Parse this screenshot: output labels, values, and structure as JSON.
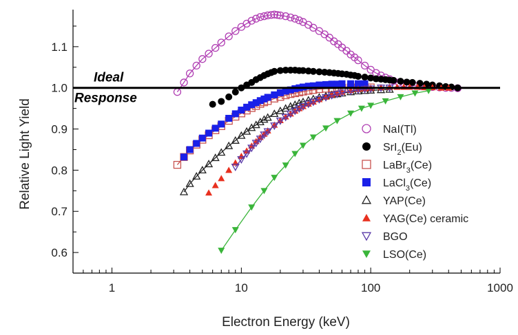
{
  "chart_data": {
    "type": "scatter",
    "xlabel": "Electron Energy (keV)",
    "ylabel": "Relative Light Yield",
    "xscale": "log",
    "xlim": [
      0.5,
      1000
    ],
    "ylim": [
      0.55,
      1.19
    ],
    "x_ticks": [
      1,
      10,
      100,
      1000
    ],
    "x_tick_labels": [
      "1",
      "10",
      "100",
      "1000"
    ],
    "y_ticks": [
      0.6,
      0.7,
      0.8,
      0.9,
      1.0,
      1.1
    ],
    "y_tick_labels": [
      "0.6",
      "0.7",
      "0.8",
      "0.9",
      "1.0",
      "1.1"
    ],
    "grid": false,
    "legend_position": "lower-right",
    "reference_line": {
      "y": 1.0,
      "label_line1": "Ideal",
      "label_line2": "Response"
    },
    "series": [
      {
        "name": "NaI(Tl)",
        "marker": "circle-open",
        "color": "#b03fb3",
        "fit": true,
        "x": [
          3.2,
          3.6,
          4.0,
          4.5,
          5.0,
          5.6,
          6.3,
          7.0,
          8.0,
          9.0,
          10,
          11,
          12,
          13,
          14,
          15,
          16,
          17,
          18,
          19,
          20,
          22,
          24,
          26,
          28,
          30,
          33,
          36,
          40,
          44,
          48,
          52,
          56,
          60,
          65,
          70,
          75,
          80,
          90,
          100,
          110,
          120,
          130,
          140,
          150,
          165,
          180,
          200,
          220,
          240,
          270,
          300,
          340,
          380,
          420,
          470
        ],
        "y": [
          0.99,
          1.013,
          1.035,
          1.054,
          1.07,
          1.083,
          1.097,
          1.11,
          1.125,
          1.138,
          1.148,
          1.156,
          1.163,
          1.168,
          1.172,
          1.174,
          1.176,
          1.177,
          1.178,
          1.177,
          1.176,
          1.174,
          1.171,
          1.168,
          1.164,
          1.16,
          1.153,
          1.146,
          1.138,
          1.13,
          1.122,
          1.113,
          1.106,
          1.098,
          1.09,
          1.081,
          1.074,
          1.067,
          1.054,
          1.044,
          1.036,
          1.03,
          1.025,
          1.021,
          1.017,
          1.013,
          1.01,
          1.007,
          1.005,
          1.004,
          1.003,
          1.002,
          1.001,
          1.0,
          1.0,
          0.999
        ]
      },
      {
        "name": "SrI2(Eu)",
        "marker": "circle-filled",
        "color": "#000000",
        "fit": false,
        "x": [
          6.0,
          7.0,
          8.0,
          9.0,
          10,
          11,
          12,
          13,
          14,
          15,
          16,
          17,
          18,
          20,
          22,
          24,
          26,
          28,
          30,
          33,
          36,
          40,
          44,
          48,
          52,
          56,
          60,
          65,
          70,
          75,
          80,
          90,
          100,
          110,
          120,
          130,
          140,
          150,
          170,
          190,
          210,
          240,
          270,
          300,
          340,
          380,
          420,
          470
        ],
        "y": [
          0.96,
          0.967,
          0.978,
          0.99,
          1.0,
          1.007,
          1.013,
          1.02,
          1.025,
          1.03,
          1.034,
          1.037,
          1.04,
          1.042,
          1.043,
          1.043,
          1.043,
          1.042,
          1.042,
          1.041,
          1.04,
          1.039,
          1.038,
          1.037,
          1.036,
          1.035,
          1.034,
          1.033,
          1.031,
          1.03,
          1.028,
          1.026,
          1.024,
          1.022,
          1.021,
          1.02,
          1.019,
          1.018,
          1.016,
          1.014,
          1.013,
          1.011,
          1.009,
          1.007,
          1.005,
          1.003,
          1.002,
          1.0
        ]
      },
      {
        "name": "LaBr3(Ce)",
        "marker": "square-open",
        "color": "#c8524e",
        "fit": true,
        "x": [
          3.2,
          3.6,
          4.0,
          4.5,
          5.0,
          5.6,
          6.3,
          7.0,
          8.0,
          9.0,
          10,
          11,
          12,
          13,
          14,
          15,
          16,
          18,
          20,
          22,
          24,
          26,
          28,
          30,
          33,
          36,
          40,
          45,
          50,
          55,
          60,
          70,
          80,
          90,
          100
        ],
        "y": [
          0.813,
          0.832,
          0.848,
          0.862,
          0.874,
          0.885,
          0.897,
          0.907,
          0.92,
          0.93,
          0.938,
          0.945,
          0.951,
          0.956,
          0.961,
          0.965,
          0.968,
          0.974,
          0.978,
          0.982,
          0.985,
          0.987,
          0.989,
          0.991,
          0.993,
          0.995,
          0.997,
          0.998,
          0.999,
          1.0,
          1.0,
          1.001,
          1.001,
          1.001,
          1.001
        ]
      },
      {
        "name": "LaCl3(Ce)",
        "marker": "square-filled",
        "color": "#1a20e8",
        "fit": false,
        "x": [
          3.6,
          4.0,
          4.5,
          5.0,
          5.6,
          6.3,
          7.0,
          8.0,
          9.0,
          10,
          11,
          12,
          13,
          14,
          15,
          16,
          18,
          20,
          22,
          24,
          26,
          28,
          30,
          33,
          36,
          40,
          45,
          50,
          55,
          60,
          70,
          80,
          90
        ],
        "y": [
          0.832,
          0.85,
          0.865,
          0.878,
          0.89,
          0.902,
          0.912,
          0.926,
          0.937,
          0.946,
          0.953,
          0.959,
          0.964,
          0.969,
          0.973,
          0.977,
          0.983,
          0.988,
          0.992,
          0.995,
          0.998,
          1.0,
          1.002,
          1.004,
          1.005,
          1.007,
          1.008,
          1.009,
          1.009,
          1.01,
          1.01,
          1.01,
          1.01
        ]
      },
      {
        "name": "YAP(Ce)",
        "marker": "triangle-open",
        "color": "#222222",
        "fit": true,
        "x": [
          3.6,
          4.0,
          4.5,
          5.0,
          5.6,
          6.3,
          7.0,
          8.0,
          9.0,
          10,
          11,
          12,
          13,
          14,
          15,
          16,
          18,
          20,
          22,
          24,
          26,
          28,
          30,
          33,
          36,
          40,
          45,
          50,
          55,
          60,
          70,
          80,
          90,
          100,
          120,
          140
        ],
        "y": [
          0.747,
          0.767,
          0.785,
          0.8,
          0.815,
          0.83,
          0.843,
          0.859,
          0.872,
          0.884,
          0.894,
          0.903,
          0.91,
          0.917,
          0.923,
          0.928,
          0.937,
          0.944,
          0.95,
          0.955,
          0.959,
          0.963,
          0.966,
          0.97,
          0.973,
          0.977,
          0.98,
          0.983,
          0.985,
          0.987,
          0.99,
          0.992,
          0.993,
          0.994,
          0.995,
          0.996
        ]
      },
      {
        "name": "YAG(Ce) ceramic",
        "marker": "triangle-filled",
        "color": "#e8301f",
        "fit": false,
        "x": [
          5.6,
          6.3,
          7.0,
          8.0,
          9.0,
          10,
          11,
          12,
          13,
          14,
          15,
          16,
          18,
          20,
          22,
          24,
          26,
          28,
          30,
          33,
          36,
          40,
          45,
          50,
          55,
          60,
          70,
          80,
          90,
          100,
          120,
          140,
          160,
          180,
          200,
          230,
          260,
          300,
          350,
          400
        ],
        "y": [
          0.745,
          0.763,
          0.78,
          0.8,
          0.818,
          0.834,
          0.847,
          0.859,
          0.87,
          0.88,
          0.888,
          0.896,
          0.91,
          0.921,
          0.93,
          0.937,
          0.944,
          0.95,
          0.955,
          0.961,
          0.966,
          0.972,
          0.978,
          0.983,
          0.987,
          0.99,
          0.994,
          0.997,
          0.998,
          1.0,
          1.001,
          1.002,
          1.002,
          1.002,
          1.002,
          1.002,
          1.001,
          1.001,
          1.0,
          1.0
        ]
      },
      {
        "name": "BGO",
        "marker": "triangle-down-open",
        "color": "#5a3aa8",
        "fit": true,
        "x": [
          9.0,
          10,
          11,
          12,
          13,
          14,
          15,
          16,
          18,
          20,
          22,
          24,
          26,
          28,
          30,
          33,
          36,
          40,
          45,
          50,
          55,
          60,
          70,
          80,
          90,
          100,
          120,
          140
        ],
        "y": [
          0.808,
          0.826,
          0.84,
          0.854,
          0.866,
          0.876,
          0.886,
          0.894,
          0.908,
          0.92,
          0.929,
          0.937,
          0.944,
          0.95,
          0.955,
          0.961,
          0.966,
          0.972,
          0.977,
          0.982,
          0.985,
          0.988,
          0.992,
          0.995,
          0.997,
          0.998,
          1.0,
          1.0
        ]
      },
      {
        "name": "LSO(Ce)",
        "marker": "triangle-down-filled",
        "color": "#3ab53a",
        "fit": true,
        "x": [
          7.0,
          9.0,
          12,
          15,
          18,
          22,
          26,
          30,
          36,
          45,
          55,
          70,
          85,
          100,
          130,
          170,
          220,
          280
        ],
        "y": [
          0.605,
          0.655,
          0.71,
          0.75,
          0.782,
          0.812,
          0.84,
          0.86,
          0.88,
          0.902,
          0.92,
          0.938,
          0.95,
          0.957,
          0.968,
          0.978,
          0.987,
          0.993
        ]
      }
    ]
  }
}
